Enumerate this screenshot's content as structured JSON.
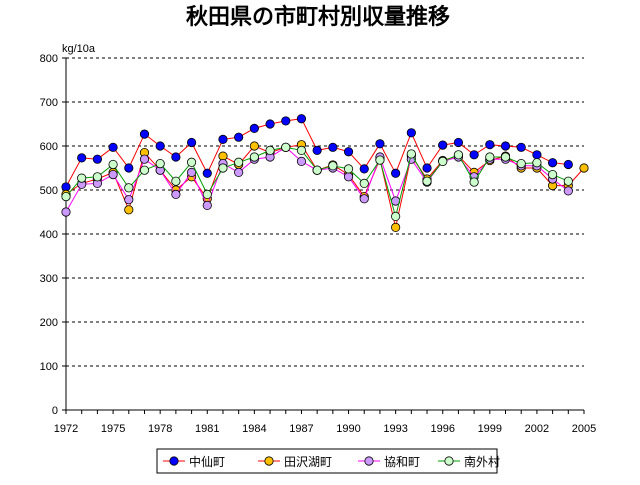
{
  "chart_data": {
    "type": "line",
    "title": "秋田県の市町村別収量推移",
    "ylabel": "kg/10a",
    "xlabel": "",
    "ylim": [
      0,
      800
    ],
    "yticks": [
      0,
      100,
      200,
      300,
      400,
      500,
      600,
      700,
      800
    ],
    "xlim": [
      1972,
      2005
    ],
    "xticks": [
      1972,
      1975,
      1978,
      1981,
      1984,
      1987,
      1990,
      1993,
      1996,
      1999,
      2002,
      2005
    ],
    "grid": "horizontal-dashed",
    "legend_position": "bottom",
    "series": [
      {
        "name": "中仙町",
        "line_color": "#ff0000",
        "marker_color": "#0000ff",
        "x": [
          1972,
          1973,
          1974,
          1975,
          1976,
          1977,
          1978,
          1979,
          1980,
          1981,
          1982,
          1983,
          1984,
          1985,
          1986,
          1987,
          1988,
          1989,
          1990,
          1991,
          1992,
          1993,
          1994,
          1995,
          1996,
          1997,
          1998,
          1999,
          2000,
          2001,
          2002,
          2003,
          2004
        ],
        "values": [
          507,
          573,
          570,
          597,
          550,
          627,
          600,
          575,
          608,
          538,
          615,
          620,
          640,
          650,
          657,
          662,
          590,
          597,
          587,
          548,
          605,
          538,
          630,
          550,
          602,
          608,
          580,
          603,
          600,
          597,
          580,
          562,
          558
        ]
      },
      {
        "name": "田沢湖町",
        "line_color": "#ff0000",
        "marker_color": "#ffc000",
        "x": [
          1972,
          1973,
          1974,
          1975,
          1976,
          1977,
          1978,
          1979,
          1980,
          1981,
          1982,
          1983,
          1984,
          1985,
          1986,
          1987,
          1988,
          1989,
          1990,
          1991,
          1992,
          1993,
          1994,
          1995,
          1996,
          1997,
          1998,
          1999,
          2000,
          2001,
          2002,
          2003,
          2004,
          2005
        ],
        "values": [
          490,
          515,
          525,
          540,
          455,
          585,
          545,
          500,
          530,
          480,
          577,
          558,
          600,
          585,
          597,
          603,
          545,
          557,
          535,
          485,
          570,
          415,
          578,
          525,
          567,
          578,
          540,
          567,
          577,
          550,
          550,
          510,
          510,
          550
        ]
      },
      {
        "name": "協和町",
        "line_color": "#ff00ff",
        "marker_color": "#cc99ff",
        "x": [
          1972,
          1973,
          1974,
          1975,
          1976,
          1977,
          1978,
          1979,
          1980,
          1981,
          1982,
          1983,
          1984,
          1985,
          1986,
          1987,
          1988,
          1989,
          1990,
          1991,
          1992,
          1993,
          1994,
          1995,
          1996,
          1997,
          1998,
          1999,
          2000,
          2001,
          2002,
          2003,
          2004
        ],
        "values": [
          450,
          513,
          515,
          535,
          478,
          570,
          545,
          490,
          540,
          465,
          560,
          540,
          570,
          575,
          597,
          565,
          545,
          550,
          530,
          480,
          575,
          475,
          570,
          518,
          565,
          575,
          530,
          570,
          570,
          555,
          555,
          525,
          498
        ]
      },
      {
        "name": "南外村",
        "line_color": "#00a000",
        "marker_color": "#ccffcc",
        "x": [
          1972,
          1973,
          1974,
          1975,
          1976,
          1977,
          1978,
          1979,
          1980,
          1981,
          1982,
          1983,
          1984,
          1985,
          1986,
          1987,
          1988,
          1989,
          1990,
          1991,
          1992,
          1993,
          1994,
          1995,
          1996,
          1997,
          1998,
          1999,
          2000,
          2001,
          2002,
          2003,
          2004
        ],
        "values": [
          485,
          527,
          530,
          558,
          505,
          545,
          560,
          520,
          563,
          490,
          550,
          563,
          575,
          590,
          597,
          590,
          545,
          555,
          548,
          515,
          568,
          440,
          582,
          520,
          565,
          580,
          518,
          575,
          575,
          560,
          562,
          535,
          520
        ]
      }
    ]
  }
}
